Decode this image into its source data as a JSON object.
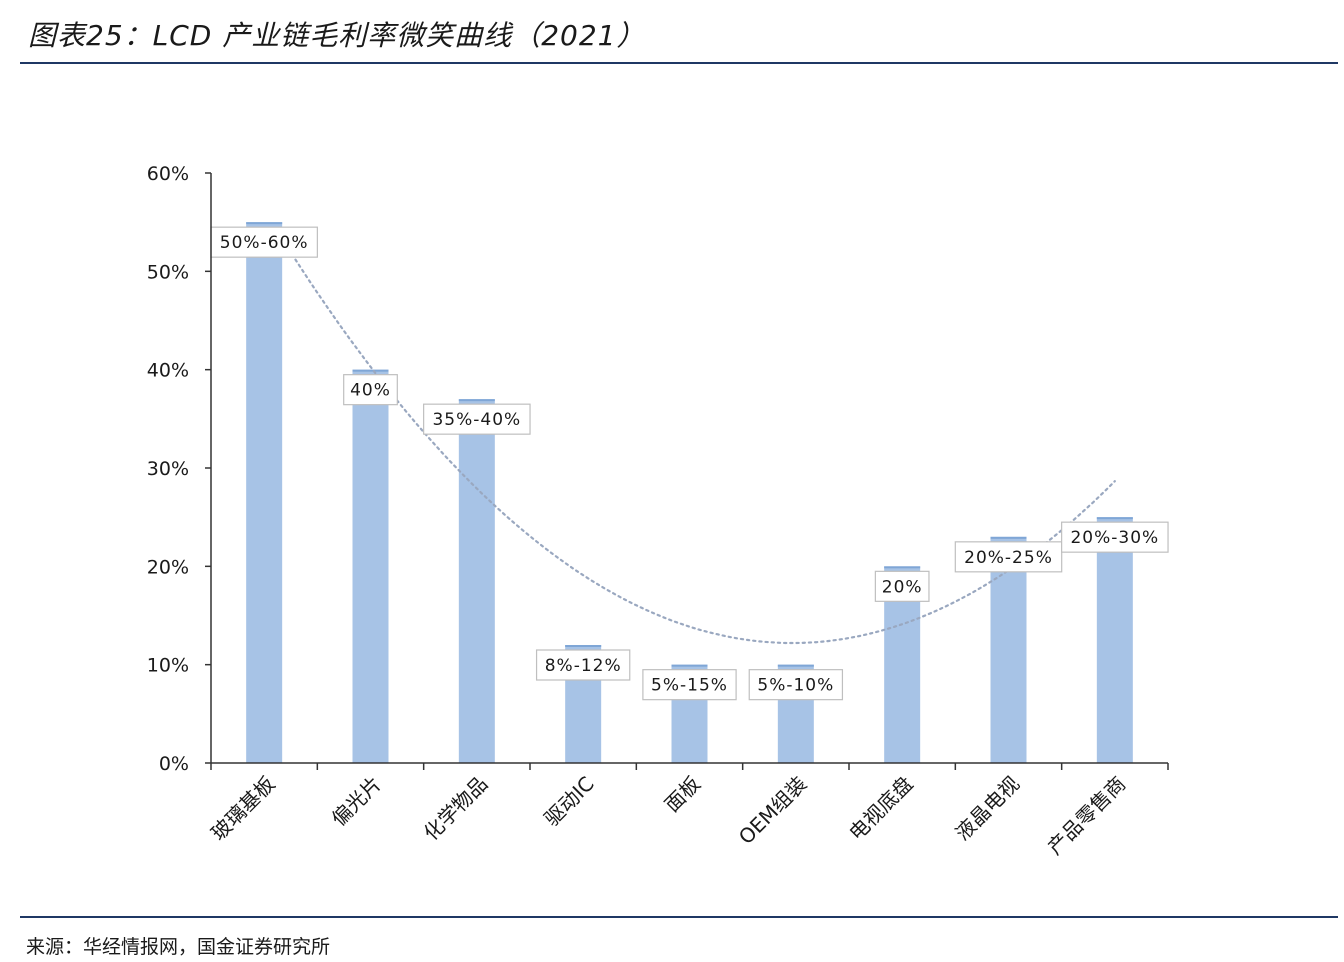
{
  "header": {
    "title": "图表25：LCD 产业链毛利率微笑曲线（2021）"
  },
  "footer": {
    "source": "来源：华经情报网，国金证券研究所"
  },
  "colors": {
    "bar": "#a7c3e6",
    "bar_top": "#7fa6d6",
    "axis": "#333333",
    "trend": "#9aa8c0",
    "rule": "#1f3864"
  },
  "chart_data": {
    "type": "bar",
    "title": "",
    "xlabel": "",
    "ylabel": "",
    "categories": [
      "玻璃基板",
      "偏光片",
      "化学物品",
      "驱动IC",
      "面板",
      "OEM组装",
      "电视底盘",
      "液晶电视",
      "产品零售商"
    ],
    "values": [
      55,
      40,
      37,
      12,
      10,
      10,
      20,
      23,
      25
    ],
    "data_labels": [
      "50%-60%",
      "40%",
      "35%-40%",
      "8%-12%",
      "5%-15%",
      "5%-10%",
      "20%",
      "20%-25%",
      "20%-30%"
    ],
    "ylim": [
      0,
      60
    ],
    "yticks": [
      0,
      10,
      20,
      30,
      40,
      50,
      60
    ],
    "ytick_labels": [
      "0%",
      "10%",
      "20%",
      "30%",
      "40%",
      "50%",
      "60%"
    ],
    "trendline": {
      "type": "polynomial",
      "style": "dotted"
    },
    "grid": false,
    "legend": "none"
  }
}
